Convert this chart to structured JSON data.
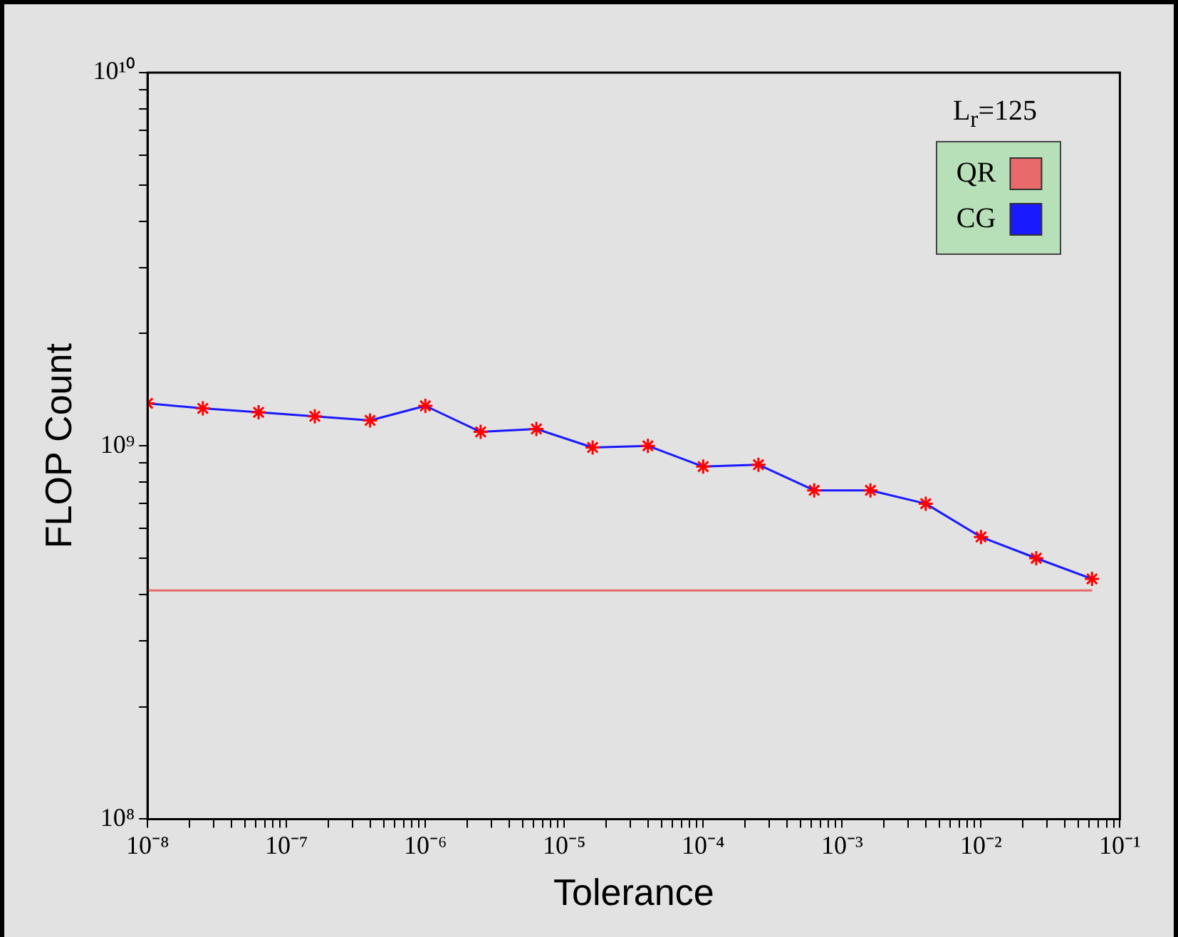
{
  "chart_data": {
    "type": "line",
    "xlabel": "Tolerance",
    "ylabel": "FLOP Count",
    "annotations": [
      "L$_{r}$=125"
    ],
    "x": [
      1e-08,
      2.5e-08,
      6.3e-08,
      1.6e-07,
      4e-07,
      1e-06,
      2.5e-06,
      6.3e-06,
      1.6e-05,
      4e-05,
      0.0001,
      0.00025,
      0.00063,
      0.0016,
      0.004,
      0.01,
      0.025,
      0.063
    ],
    "series": [
      {
        "name": "QR",
        "color": "#e86a6a",
        "x": [
          1e-08,
          0.063
        ],
        "values": [
          410000000.0,
          410000000.0
        ],
        "marker": "none"
      },
      {
        "name": "CG",
        "color": "#1a1aff",
        "marker": "cross",
        "colors": [
          "#ff0000",
          "#ff0000",
          "#ff0000",
          "#ff0000",
          "#ff0000",
          "#ff0000",
          "#ff0000",
          "#ff0000",
          "#ff0000",
          "#ff0000",
          "#ff0000",
          "#ff0000",
          "#ff0000",
          "#ff0000",
          "#ff0000",
          "#ff0000",
          "#ff0000",
          "#ff0000"
        ],
        "values": [
          1300000000.0,
          1260000000.0,
          1230000000.0,
          1200000000.0,
          1170000000.0,
          1280000000.0,
          1090000000.0,
          1110000000.0,
          990000000.0,
          1000000000.0,
          880000000.0,
          890000000.0,
          760000000.0,
          760000000.0,
          700000000.0,
          570000000.0,
          500000000.0,
          440000000.0
        ]
      }
    ],
    "log": "xy",
    "xlim": [
      1e-08,
      0.1
    ],
    "ylim": [
      100000000.0,
      10000000000.0
    ],
    "xticks": [
      {
        "value": 1e-08,
        "label": "10⁻⁸"
      },
      {
        "value": 2e-08,
        "label": null
      },
      {
        "value": 3e-08,
        "label": null
      },
      {
        "value": 4e-08,
        "label": null
      },
      {
        "value": 5e-08,
        "label": null
      },
      {
        "value": 6e-08,
        "label": null
      },
      {
        "value": 7e-08,
        "label": null
      },
      {
        "value": 8e-08,
        "label": null
      },
      {
        "value": 9e-08,
        "label": null
      },
      {
        "value": 1e-07,
        "label": "10⁻⁷"
      },
      {
        "value": 2e-07,
        "label": null
      },
      {
        "value": 3e-07,
        "label": null
      },
      {
        "value": 4e-07,
        "label": null
      },
      {
        "value": 5e-07,
        "label": null
      },
      {
        "value": 6e-07,
        "label": null
      },
      {
        "value": 7e-07,
        "label": null
      },
      {
        "value": 8e-07,
        "label": null
      },
      {
        "value": 9e-07,
        "label": null
      },
      {
        "value": 1e-06,
        "label": "10⁻⁶"
      },
      {
        "value": 2e-06,
        "label": null
      },
      {
        "value": 3e-06,
        "label": null
      },
      {
        "value": 4e-06,
        "label": null
      },
      {
        "value": 5e-06,
        "label": null
      },
      {
        "value": 6e-06,
        "label": null
      },
      {
        "value": 7e-06,
        "label": null
      },
      {
        "value": 8e-06,
        "label": null
      },
      {
        "value": 9e-06,
        "label": null
      },
      {
        "value": 1e-05,
        "label": "10⁻⁵"
      },
      {
        "value": 2e-05,
        "label": null
      },
      {
        "value": 3e-05,
        "label": null
      },
      {
        "value": 4e-05,
        "label": null
      },
      {
        "value": 5e-05,
        "label": null
      },
      {
        "value": 6e-05,
        "label": null
      },
      {
        "value": 7e-05,
        "label": null
      },
      {
        "value": 8e-05,
        "label": null
      },
      {
        "value": 9e-05,
        "label": null
      },
      {
        "value": 0.0001,
        "label": "10⁻⁴"
      },
      {
        "value": 0.0002,
        "label": null
      },
      {
        "value": 0.0003,
        "label": null
      },
      {
        "value": 0.0004,
        "label": null
      },
      {
        "value": 0.0005,
        "label": null
      },
      {
        "value": 0.0006,
        "label": null
      },
      {
        "value": 0.0007,
        "label": null
      },
      {
        "value": 0.0008,
        "label": null
      },
      {
        "value": 0.0009,
        "label": null
      },
      {
        "value": 0.001,
        "label": "10⁻³"
      },
      {
        "value": 0.002,
        "label": null
      },
      {
        "value": 0.003,
        "label": null
      },
      {
        "value": 0.004,
        "label": null
      },
      {
        "value": 0.005,
        "label": null
      },
      {
        "value": 0.006,
        "label": null
      },
      {
        "value": 0.007,
        "label": null
      },
      {
        "value": 0.008,
        "label": null
      },
      {
        "value": 0.009,
        "label": null
      },
      {
        "value": 0.01,
        "label": "10⁻²"
      },
      {
        "value": 0.02,
        "label": null
      },
      {
        "value": 0.03,
        "label": null
      },
      {
        "value": 0.04,
        "label": null
      },
      {
        "value": 0.05,
        "label": null
      },
      {
        "value": 0.06,
        "label": null
      },
      {
        "value": 0.07,
        "label": null
      },
      {
        "value": 0.08,
        "label": null
      },
      {
        "value": 0.09,
        "label": null
      },
      {
        "value": 0.1,
        "label": "10⁻¹"
      }
    ],
    "yticks": [
      {
        "value": 100000000.0,
        "label": "10⁸"
      },
      {
        "value": 200000000.0,
        "label": null
      },
      {
        "value": 300000000.0,
        "label": null
      },
      {
        "value": 400000000.0,
        "label": null
      },
      {
        "value": 500000000.0,
        "label": null
      },
      {
        "value": 600000000.0,
        "label": null
      },
      {
        "value": 700000000.0,
        "label": null
      },
      {
        "value": 800000000.0,
        "label": null
      },
      {
        "value": 900000000.0,
        "label": null
      },
      {
        "value": 1000000000.0,
        "label": "10⁹"
      },
      {
        "value": 2000000000.0,
        "label": null
      },
      {
        "value": 3000000000.0,
        "label": null
      },
      {
        "value": 4000000000.0,
        "label": null
      },
      {
        "value": 5000000000.0,
        "label": null
      },
      {
        "value": 6000000000.0,
        "label": null
      },
      {
        "value": 7000000000.0,
        "label": null
      },
      {
        "value": 8000000000.0,
        "label": null
      },
      {
        "value": 9000000000.0,
        "label": null
      },
      {
        "value": 10000000000.0,
        "label": "10¹⁰"
      }
    ],
    "grid": false,
    "legend": "top right"
  }
}
